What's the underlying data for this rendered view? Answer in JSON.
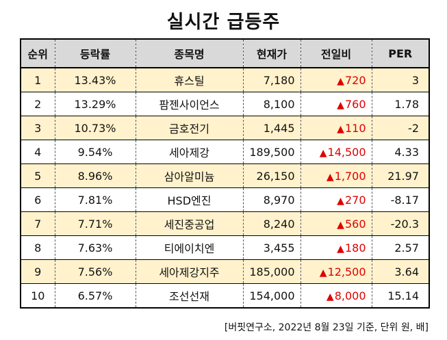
{
  "title": "실시간 급등주",
  "table": {
    "headers": [
      "순위",
      "등락률",
      "종목명",
      "현재가",
      "전일비",
      "PER"
    ],
    "up_symbol": "▲",
    "up_color": "#e00000",
    "row_highlight_color": "#fff2cc",
    "header_bg_color": "#d9d9d9",
    "rows": [
      {
        "rank": "1",
        "rate": "13.43%",
        "name": "휴스틸",
        "price": "7,180",
        "change": "720",
        "per": "3"
      },
      {
        "rank": "2",
        "rate": "13.29%",
        "name": "팜젠사이언스",
        "price": "8,100",
        "change": "760",
        "per": "1.78"
      },
      {
        "rank": "3",
        "rate": "10.73%",
        "name": "금호전기",
        "price": "1,445",
        "change": "110",
        "per": "-2"
      },
      {
        "rank": "4",
        "rate": "9.54%",
        "name": "세아제강",
        "price": "189,500",
        "change": "14,500",
        "per": "4.33"
      },
      {
        "rank": "5",
        "rate": "8.96%",
        "name": "삼아알미늄",
        "price": "26,150",
        "change": "1,700",
        "per": "21.97"
      },
      {
        "rank": "6",
        "rate": "7.81%",
        "name": "HSD엔진",
        "price": "8,970",
        "change": "270",
        "per": "-8.17"
      },
      {
        "rank": "7",
        "rate": "7.71%",
        "name": "세진중공업",
        "price": "8,240",
        "change": "560",
        "per": "-20.3"
      },
      {
        "rank": "8",
        "rate": "7.63%",
        "name": "티에이치엔",
        "price": "3,455",
        "change": "180",
        "per": "2.57"
      },
      {
        "rank": "9",
        "rate": "7.56%",
        "name": "세아제강지주",
        "price": "185,000",
        "change": "12,500",
        "per": "3.64"
      },
      {
        "rank": "10",
        "rate": "6.57%",
        "name": "조선선재",
        "price": "154,000",
        "change": "8,000",
        "per": "15.14"
      }
    ]
  },
  "source": "[버핏연구소, 2022년 8월 23일 기준, 단위 원, 배]"
}
